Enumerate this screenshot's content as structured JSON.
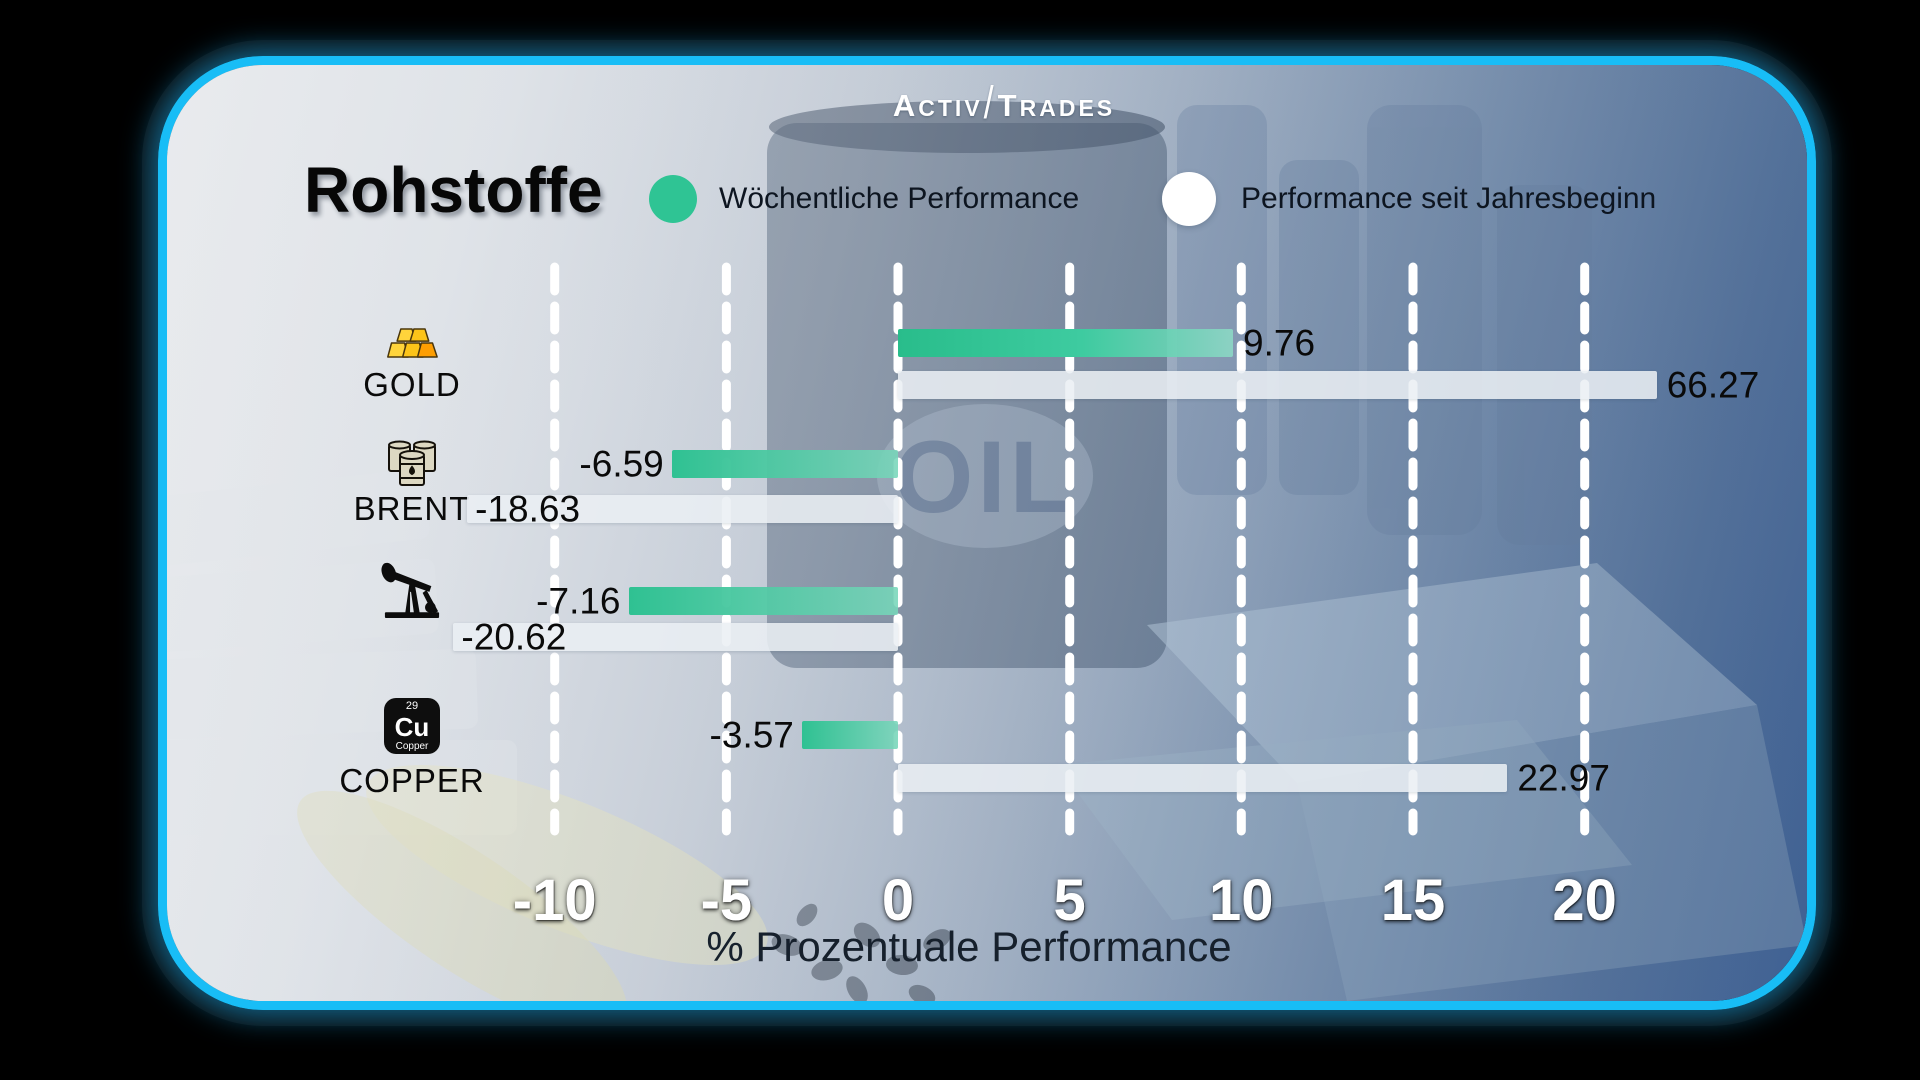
{
  "brand": {
    "name": "ActivTrades",
    "logo": {
      "a": "A",
      "ctiv": "CTIV",
      "slash": "/",
      "t": "T",
      "rades": "RADES"
    }
  },
  "title": "Rohstoffe",
  "legend": {
    "weekly": {
      "label": "Wöchentliche Performance",
      "color": "#2fc494"
    },
    "ytd": {
      "label": "Performance seit Jahresbeginn",
      "color": "#ffffff"
    }
  },
  "axis": {
    "label": "% Prozentuale Performance",
    "ticks": [
      "-10",
      "-5",
      "0",
      "5",
      "10",
      "15",
      "20"
    ]
  },
  "background": {
    "oil_text": "OIL"
  },
  "copper_chip": {
    "number": "29",
    "symbol": "Cu",
    "name": "Copper"
  },
  "rows": [
    {
      "id": "gold",
      "label": "GOLD",
      "icon": "gold-bars-icon",
      "weekly": {
        "text": "9.76",
        "value": 9.76,
        "display_units": 9.76
      },
      "ytd": {
        "text": "66.27",
        "value": 66.27,
        "display_units": 22.1,
        "label_inside": false
      }
    },
    {
      "id": "brent",
      "label": "BRENT",
      "icon": "oil-barrels-icon",
      "weekly": {
        "text": "-6.59",
        "value": -6.59,
        "display_units": -6.59
      },
      "ytd": {
        "text": "-18.63",
        "value": -18.63,
        "display_units": -12.55,
        "label_inside": true
      }
    },
    {
      "id": "wti",
      "label": "",
      "icon": "oil-pumpjack-icon",
      "weekly": {
        "text": "-7.16",
        "value": -7.16,
        "display_units": -7.85
      },
      "ytd": {
        "text": "-20.62",
        "value": -20.62,
        "display_units": -12.95,
        "label_inside": true
      }
    },
    {
      "id": "copper",
      "label": "COPPER",
      "icon": "copper-element-icon",
      "weekly": {
        "text": "-3.57",
        "value": -3.57,
        "display_units": -2.8
      },
      "ytd": {
        "text": "22.97",
        "value": 22.97,
        "display_units": 17.75,
        "label_inside": false
      }
    }
  ],
  "chart_data": {
    "type": "bar",
    "orientation": "horizontal",
    "title": "Rohstoffe",
    "categories": [
      "GOLD",
      "BRENT",
      "WTI (pumpjack icon, unlabeled)",
      "COPPER"
    ],
    "series": [
      {
        "name": "Wöchentliche Performance",
        "color": "#2fc494",
        "values": [
          9.76,
          -6.59,
          -7.16,
          -3.57
        ]
      },
      {
        "name": "Performance seit Jahresbeginn",
        "color": "#ffffff",
        "values": [
          66.27,
          -18.63,
          -20.62,
          22.97
        ]
      }
    ],
    "xlabel": "% Prozentuale Performance",
    "xticks": [
      -10,
      -5,
      0,
      5,
      10,
      15,
      20
    ],
    "xlim_display": [
      -12.95,
      22.3
    ],
    "grid": "dashed-white-vertical",
    "legend_position": "top",
    "note": "Bars exceeding the plotted range are clipped; data labels show true values"
  }
}
